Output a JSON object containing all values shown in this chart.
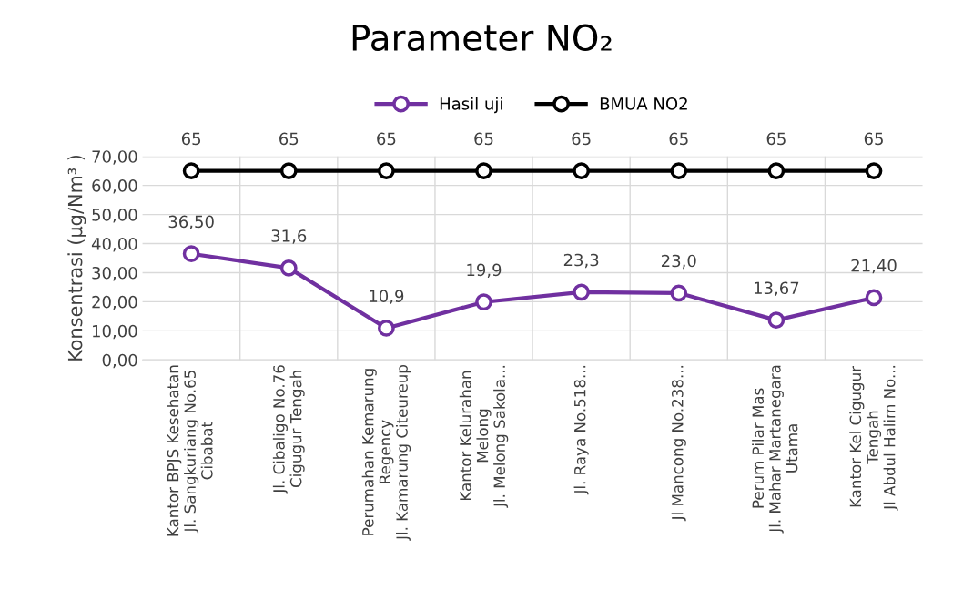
{
  "chart_data": {
    "type": "line",
    "title": "Parameter NO₂",
    "ylabel": "Konsentrasi (µg/Nm³ )",
    "categories": [
      "Kantor BPJS Kesehatan\nJl. Sangkuriang No.65\nCibabat",
      "Jl. Cibaligo No.76\nCigugur Tengah",
      "Perumahan Kemarung\nRegency\nJl. Kamarung Citeureup",
      "Kantor Kelurahan\nMelong\nJl. Melong Sakola...",
      "Jl. Raya No.518...",
      "Jl Mancong No.238...",
      "Perum Pilar Mas\nJl. Mahar Martanegara\nUtama",
      "Kantor Kel Cigugur\nTengah\nJl Abdul Halim No..."
    ],
    "series": [
      {
        "name": "Hasil uji",
        "color": "#7030a0",
        "values": [
          36.5,
          31.6,
          10.9,
          19.9,
          23.3,
          23.0,
          13.67,
          21.4
        ],
        "value_labels": [
          "36,50",
          "31,6",
          "10,9",
          "19,9",
          "23,3",
          "23,0",
          "13,67",
          "21,40"
        ]
      },
      {
        "name": "BMUA NO2",
        "color": "#000000",
        "values": [
          65,
          65,
          65,
          65,
          65,
          65,
          65,
          65
        ],
        "value_labels": [
          "65",
          "65",
          "65",
          "65",
          "65",
          "65",
          "65",
          "65"
        ]
      }
    ],
    "ylim": [
      0,
      70
    ],
    "yticks": [
      {
        "value": 0,
        "label": "0,00"
      },
      {
        "value": 10,
        "label": "10,00"
      },
      {
        "value": 20,
        "label": "20,00"
      },
      {
        "value": 30,
        "label": "30,00"
      },
      {
        "value": 40,
        "label": "40,00"
      },
      {
        "value": 50,
        "label": "50,00"
      },
      {
        "value": 60,
        "label": "60,00"
      },
      {
        "value": 70,
        "label": "70,00"
      }
    ],
    "grid": true,
    "legend": "top",
    "marker": "circle",
    "line_style": "solid"
  }
}
